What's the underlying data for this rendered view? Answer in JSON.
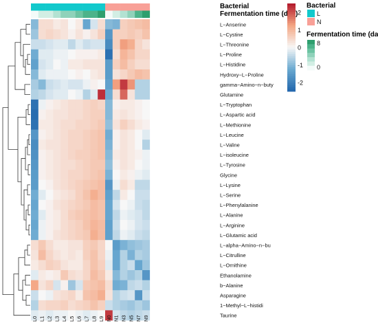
{
  "chart_data": {
    "type": "heatmap",
    "columns": [
      "L0",
      "L1",
      "L2",
      "L3",
      "L4",
      "L5",
      "L6",
      "L7",
      "L8",
      "L9",
      "N0",
      "N1",
      "N3",
      "N5",
      "N7",
      "N9"
    ],
    "rows": [
      "L−Anserine",
      "L−Cystine",
      "L−Threonine",
      "L−Proline",
      "L−Histidine",
      "Hydroxy−L−Proline",
      "gamma−Amino−n−buty",
      "Glutamine",
      "L−Tryptophan",
      "L−Aspartic acid",
      "L−Methionine",
      "L−Leucine",
      "L−Valine",
      "L−isoleucine",
      "L−Tyrosine",
      "Glycine",
      "L−Lysine",
      "L−Serine",
      "L−Phenylalanine",
      "L−Alanine",
      "L−Arginine",
      "L−Glutamic acid",
      "L−alpha−Amino−n−bu",
      "L−Citrulline",
      "L−Ornithine",
      "Ethanolamine",
      "b−Alanine",
      "Asparagine",
      "1−Methyl−L−histidi",
      "Taurine"
    ],
    "values": [
      [
        -1.0,
        0.4,
        0.4,
        0.2,
        0.3,
        0.0,
        0.2,
        -1.3,
        -0.3,
        0.4,
        -1.0,
        -1.1,
        0.6,
        0.7,
        0.8,
        0.9
      ],
      [
        -0.8,
        0.4,
        0.5,
        0.4,
        0.3,
        0.1,
        0.3,
        0.1,
        0.3,
        0.6,
        -1.6,
        0.6,
        0.6,
        0.7,
        0.6,
        0.8
      ],
      [
        -0.4,
        -0.4,
        -0.3,
        -0.2,
        -0.2,
        -0.5,
        -0.2,
        -0.4,
        -0.3,
        -0.3,
        -1.8,
        0.6,
        1.3,
        1.1,
        0.5,
        0.3
      ],
      [
        -1.2,
        -0.2,
        -0.2,
        -0.1,
        -0.1,
        0.0,
        0.1,
        0.1,
        0.1,
        0.2,
        -2.3,
        0.4,
        1.0,
        0.8,
        0.5,
        0.5
      ],
      [
        -1.4,
        -0.3,
        -0.2,
        0.0,
        -0.1,
        0.2,
        0.2,
        0.3,
        0.3,
        0.3,
        -1.5,
        0.6,
        0.9,
        0.6,
        0.4,
        0.4
      ],
      [
        -1.0,
        -0.2,
        -0.1,
        -0.1,
        -0.1,
        0.0,
        0.1,
        0.0,
        0.2,
        0.3,
        -1.5,
        0.3,
        0.5,
        0.7,
        0.9,
        0.8
      ],
      [
        -0.7,
        -1.0,
        -0.4,
        -0.3,
        -0.2,
        -0.3,
        -0.3,
        -0.1,
        0.1,
        0.0,
        -1.4,
        1.3,
        2.2,
        1.4,
        -0.6,
        -0.6
      ],
      [
        -0.6,
        -0.5,
        -0.3,
        -0.2,
        -0.2,
        0.0,
        -0.1,
        -0.6,
        -0.2,
        2.3,
        -1.2,
        0.4,
        1.8,
        0.3,
        -0.6,
        -0.6
      ],
      [
        -2.3,
        -0.1,
        0.1,
        0.2,
        0.3,
        0.4,
        0.4,
        0.5,
        0.6,
        0.5,
        -1.0,
        0.1,
        0.2,
        0.2,
        0.1,
        0.0
      ],
      [
        -2.4,
        0.1,
        0.2,
        0.3,
        0.3,
        0.4,
        0.4,
        0.5,
        0.6,
        0.6,
        -1.0,
        0.2,
        0.3,
        0.2,
        0.1,
        0.0
      ],
      [
        -2.3,
        0.2,
        0.2,
        0.3,
        0.4,
        0.4,
        0.5,
        0.5,
        0.6,
        0.7,
        -0.9,
        0.3,
        0.6,
        0.4,
        0.2,
        0.1
      ],
      [
        -1.6,
        0.1,
        0.2,
        0.3,
        0.4,
        0.5,
        0.5,
        0.6,
        0.7,
        0.8,
        -1.2,
        0.1,
        0.3,
        0.2,
        0.0,
        -0.2
      ],
      [
        -1.8,
        0.2,
        0.3,
        0.3,
        0.4,
        0.5,
        0.5,
        0.6,
        0.7,
        0.8,
        -1.1,
        0.1,
        0.3,
        0.2,
        0.0,
        -0.6
      ],
      [
        -1.7,
        0.1,
        0.2,
        0.3,
        0.4,
        0.5,
        0.6,
        0.6,
        0.7,
        0.8,
        -1.0,
        0.2,
        0.3,
        0.2,
        0.1,
        -0.1
      ],
      [
        -1.6,
        0.1,
        0.2,
        0.3,
        0.4,
        0.4,
        0.5,
        0.6,
        0.7,
        0.7,
        -0.9,
        0.1,
        0.3,
        0.2,
        0.0,
        -0.1
      ],
      [
        -1.5,
        0.1,
        0.2,
        0.3,
        0.4,
        0.5,
        0.5,
        0.6,
        0.7,
        0.8,
        -1.1,
        0.0,
        0.2,
        0.1,
        -0.1,
        -0.2
      ],
      [
        -1.5,
        0.0,
        0.1,
        0.3,
        0.4,
        0.5,
        0.6,
        0.7,
        0.8,
        0.9,
        -1.6,
        -0.1,
        0.4,
        0.2,
        -0.5,
        -0.5
      ],
      [
        -1.2,
        -0.2,
        0.0,
        0.2,
        0.3,
        0.4,
        0.6,
        0.8,
        1.1,
        0.9,
        -1.4,
        -0.5,
        0.2,
        0.0,
        -0.4,
        -0.4
      ],
      [
        -1.3,
        0.0,
        0.1,
        0.3,
        0.4,
        0.5,
        0.6,
        0.7,
        0.9,
        0.8,
        -1.3,
        -0.3,
        0.0,
        -0.1,
        -0.4,
        -0.5
      ],
      [
        -1.2,
        -0.2,
        0.1,
        0.2,
        0.4,
        0.6,
        0.7,
        0.8,
        0.9,
        0.8,
        -1.3,
        -0.5,
        -0.1,
        -0.2,
        -0.3,
        -0.5
      ],
      [
        -1.3,
        -0.1,
        0.1,
        0.2,
        0.4,
        0.5,
        0.6,
        0.8,
        1.0,
        0.9,
        -1.4,
        -0.4,
        0.0,
        -0.1,
        -0.3,
        -0.4
      ],
      [
        -1.2,
        -0.1,
        0.1,
        0.3,
        0.4,
        0.5,
        0.6,
        0.7,
        1.1,
        0.9,
        -1.4,
        -0.5,
        -0.1,
        -0.2,
        -0.4,
        -0.5
      ],
      [
        0.4,
        0.7,
        0.4,
        0.2,
        0.2,
        0.3,
        0.3,
        0.6,
        0.7,
        0.5,
        0.0,
        -1.5,
        -1.1,
        -0.9,
        -0.8,
        -0.7
      ],
      [
        0.3,
        0.9,
        0.5,
        0.3,
        0.2,
        0.3,
        0.2,
        0.6,
        0.8,
        0.5,
        -0.1,
        -1.3,
        -0.6,
        -1.1,
        -0.6,
        -0.7
      ],
      [
        0.2,
        0.4,
        0.6,
        0.5,
        0.3,
        0.2,
        0.2,
        0.5,
        0.8,
        0.6,
        -0.2,
        -1.3,
        -0.6,
        -0.4,
        -1.3,
        -0.8
      ],
      [
        -0.2,
        0.2,
        0.1,
        0.2,
        0.7,
        0.4,
        0.3,
        0.5,
        0.9,
        0.7,
        0.2,
        -1.0,
        -0.6,
        -0.8,
        -0.6,
        -1.6
      ],
      [
        1.2,
        0.3,
        0.5,
        -0.3,
        0.1,
        -0.8,
        -0.3,
        0.7,
        0.8,
        0.9,
        0.4,
        -1.2,
        -1.1,
        -0.5,
        -0.4,
        -0.6
      ],
      [
        -0.4,
        0.0,
        -0.1,
        0.3,
        0.4,
        0.5,
        0.2,
        0.8,
        0.9,
        1.1,
        0.3,
        -0.6,
        -0.4,
        -0.3,
        -1.6,
        -0.4
      ],
      [
        -0.6,
        0.4,
        0.5,
        0.5,
        0.6,
        0.4,
        0.5,
        0.6,
        0.8,
        0.6,
        -0.4,
        -0.6,
        -0.7,
        -0.8,
        -0.6,
        -0.8
      ],
      [
        -0.2,
        -0.1,
        -0.2,
        -0.1,
        -0.1,
        0.0,
        -0.1,
        -0.2,
        -0.1,
        0.0,
        2.2,
        -0.3,
        -0.5,
        -0.6,
        -0.5,
        -0.4
      ]
    ],
    "color_scale": {
      "min": -2.5,
      "max": 2.5,
      "ticks": [
        2,
        1,
        0,
        -1,
        -2
      ],
      "colors": [
        "#2166ac",
        "#6aa9d0",
        "#f7f7f7",
        "#f4a582",
        "#b2182b"
      ]
    },
    "annotations": {
      "bacterial": {
        "title": "Bacterial",
        "levels": [
          {
            "label": "L",
            "color": "#12c9cc"
          },
          {
            "label": "N",
            "color": "#f8a097"
          }
        ],
        "values": [
          "L",
          "L",
          "L",
          "L",
          "L",
          "L",
          "L",
          "L",
          "L",
          "L",
          "N",
          "N",
          "N",
          "N",
          "N",
          "N"
        ]
      },
      "fermentation": {
        "title": "Fermentation time (day)",
        "legend_ticks": [
          "8",
          "0"
        ],
        "colors": [
          "#f3fbf9",
          "#d2eee4",
          "#b3e2d2",
          "#8fd2ba",
          "#6cc3a2",
          "#4cb38a",
          "#2e9f6e"
        ],
        "values": [
          0,
          1,
          2,
          3,
          4,
          5,
          6,
          7,
          8,
          9,
          0,
          1,
          3,
          5,
          7,
          9
        ]
      }
    }
  }
}
